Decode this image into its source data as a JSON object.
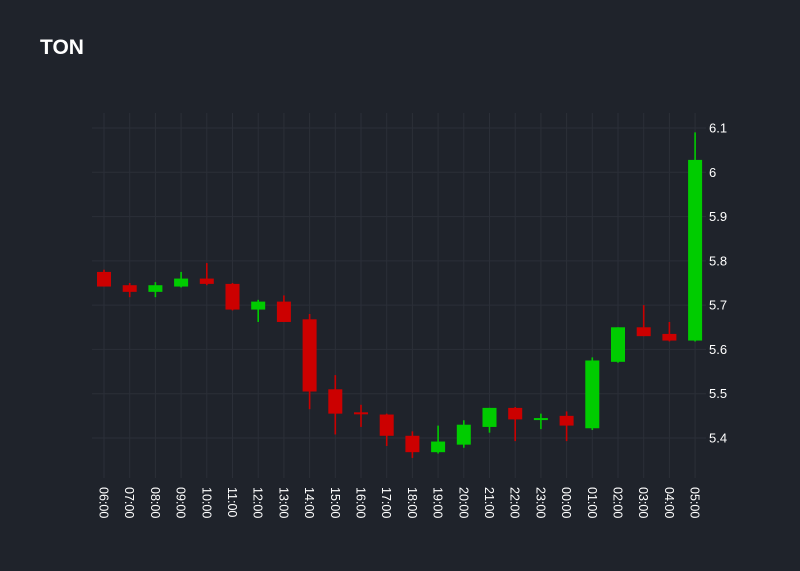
{
  "chart_data": {
    "type": "candlestick",
    "title": "TON",
    "xlabel": "",
    "ylabel": "",
    "ylim": [
      5.31,
      6.13
    ],
    "yticks": [
      5.4,
      5.5,
      5.6,
      5.7,
      5.8,
      5.9,
      6,
      6.1
    ],
    "ytick_labels": [
      "5.4",
      "5.5",
      "5.6",
      "5.7",
      "5.8",
      "5.9",
      "6",
      "6.1"
    ],
    "grid": true,
    "colors": {
      "up": "#00cc00",
      "down": "#cc0000",
      "grid": "#2b2f38",
      "background": "#1f232b"
    },
    "categories": [
      "06:00",
      "07:00",
      "08:00",
      "09:00",
      "10:00",
      "11:00",
      "12:00",
      "13:00",
      "14:00",
      "15:00",
      "16:00",
      "17:00",
      "18:00",
      "19:00",
      "20:00",
      "21:00",
      "22:00",
      "23:00",
      "00:00",
      "01:00",
      "02:00",
      "03:00",
      "04:00",
      "05:00"
    ],
    "open": [
      5.775,
      5.745,
      5.73,
      5.742,
      5.76,
      5.748,
      5.69,
      5.708,
      5.668,
      5.51,
      5.458,
      5.453,
      5.405,
      5.368,
      5.385,
      5.425,
      5.468,
      5.445,
      5.45,
      5.422,
      5.572,
      5.65,
      5.635,
      5.62
    ],
    "high": [
      5.78,
      5.75,
      5.752,
      5.775,
      5.795,
      5.75,
      5.712,
      5.722,
      5.68,
      5.542,
      5.475,
      5.455,
      5.415,
      5.428,
      5.44,
      5.468,
      5.47,
      5.455,
      5.46,
      5.582,
      5.65,
      5.7,
      5.662,
      6.09
    ],
    "low": [
      5.742,
      5.718,
      5.718,
      5.74,
      5.745,
      5.688,
      5.662,
      5.662,
      5.465,
      5.408,
      5.425,
      5.382,
      5.355,
      5.365,
      5.378,
      5.412,
      5.393,
      5.42,
      5.393,
      5.418,
      5.57,
      5.63,
      5.618,
      5.618
    ],
    "close": [
      5.742,
      5.73,
      5.745,
      5.76,
      5.748,
      5.69,
      5.708,
      5.662,
      5.505,
      5.455,
      5.455,
      5.405,
      5.368,
      5.392,
      5.43,
      5.468,
      5.442,
      5.445,
      5.428,
      5.575,
      5.65,
      5.63,
      5.62,
      6.028
    ]
  }
}
